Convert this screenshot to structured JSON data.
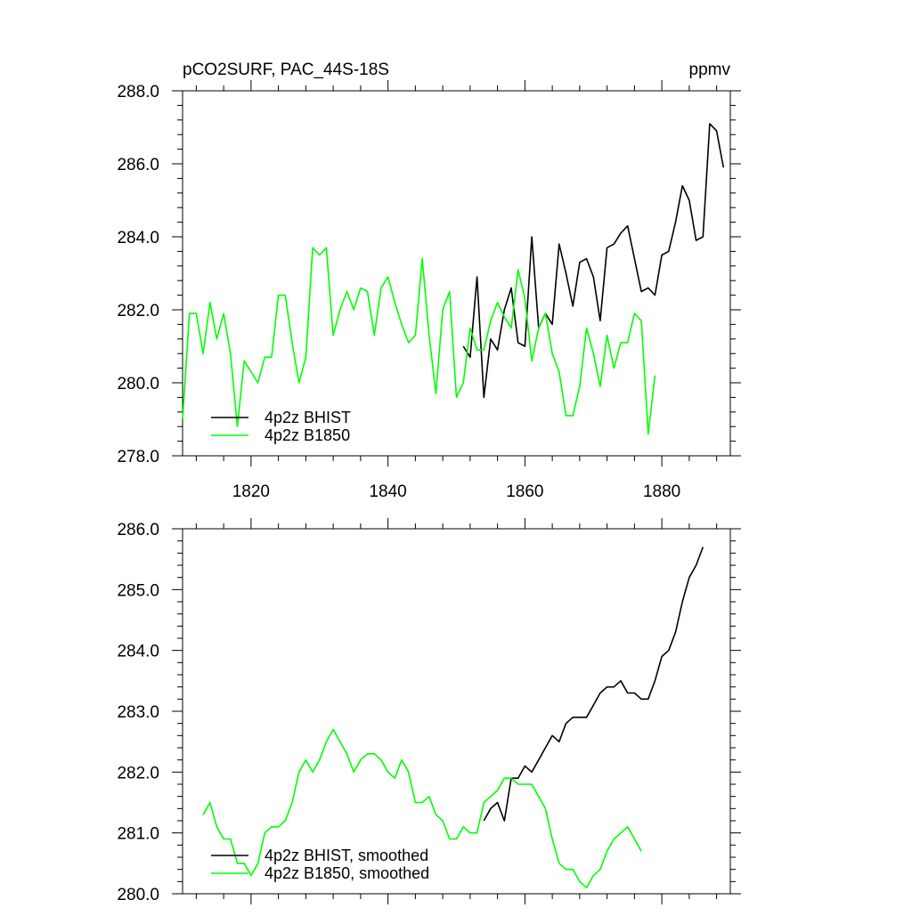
{
  "chart_data": [
    {
      "type": "line",
      "title": "pCO2SURF, PAC_44S-18S",
      "units": "ppmv",
      "xlim": [
        1810,
        1890
      ],
      "ylim": [
        278,
        288
      ],
      "x_ticks": [
        1820,
        1840,
        1860,
        1880
      ],
      "x_tick_labels": [
        "1820",
        "1840",
        "1860",
        "1880"
      ],
      "y_ticks": [
        278,
        280,
        282,
        284,
        286,
        288
      ],
      "y_tick_labels": [
        "278.0",
        "280.0",
        "282.0",
        "284.0",
        "286.0",
        "288.0"
      ],
      "legend_position": "bottom-left",
      "series": [
        {
          "name": "4p2z BHIST",
          "color": "#000000",
          "x": [
            1851,
            1852,
            1853,
            1854,
            1855,
            1856,
            1857,
            1858,
            1859,
            1860,
            1861,
            1862,
            1863,
            1864,
            1865,
            1866,
            1867,
            1868,
            1869,
            1870,
            1871,
            1872,
            1873,
            1874,
            1875,
            1876,
            1877,
            1878,
            1879,
            1880,
            1881,
            1882,
            1883,
            1884,
            1885,
            1886,
            1887,
            1888,
            1889
          ],
          "y": [
            281.0,
            280.7,
            282.9,
            279.6,
            281.2,
            280.9,
            282.0,
            282.6,
            281.1,
            281.0,
            284.0,
            281.5,
            281.9,
            281.6,
            283.8,
            283.0,
            282.1,
            283.3,
            283.4,
            282.9,
            281.7,
            283.7,
            283.8,
            284.1,
            284.3,
            283.4,
            282.5,
            282.6,
            282.4,
            283.5,
            283.6,
            284.4,
            285.4,
            285.0,
            283.9,
            284.0,
            287.1,
            286.9,
            285.9
          ]
        },
        {
          "name": "4p2z B1850",
          "color": "#00ff00",
          "x": [
            1810,
            1811,
            1812,
            1813,
            1814,
            1815,
            1816,
            1817,
            1818,
            1819,
            1820,
            1821,
            1822,
            1823,
            1824,
            1825,
            1826,
            1827,
            1828,
            1829,
            1830,
            1831,
            1832,
            1833,
            1834,
            1835,
            1836,
            1837,
            1838,
            1839,
            1840,
            1841,
            1842,
            1843,
            1844,
            1845,
            1846,
            1847,
            1848,
            1849,
            1850,
            1851,
            1852,
            1853,
            1854,
            1855,
            1856,
            1857,
            1858,
            1859,
            1860,
            1861,
            1862,
            1863,
            1864,
            1865,
            1866,
            1867,
            1868,
            1869,
            1870,
            1871,
            1872,
            1873,
            1874,
            1875,
            1876,
            1877,
            1878,
            1879
          ],
          "y": [
            279.0,
            281.9,
            281.9,
            280.8,
            282.2,
            281.2,
            281.9,
            280.8,
            278.8,
            280.6,
            280.3,
            280.0,
            280.7,
            280.7,
            282.4,
            282.4,
            281.1,
            280.0,
            280.7,
            283.7,
            283.5,
            283.7,
            281.3,
            282.0,
            282.5,
            282.0,
            282.6,
            282.5,
            281.3,
            282.6,
            282.9,
            282.2,
            281.6,
            281.1,
            281.3,
            283.4,
            281.3,
            279.7,
            282.0,
            282.5,
            279.6,
            280.0,
            281.5,
            280.9,
            280.9,
            281.7,
            282.2,
            281.8,
            281.5,
            283.1,
            282.3,
            280.6,
            281.5,
            281.9,
            280.8,
            280.3,
            279.1,
            279.1,
            279.9,
            281.5,
            280.8,
            279.9,
            281.3,
            280.4,
            281.1,
            281.1,
            281.9,
            281.7,
            278.6,
            280.2
          ]
        }
      ]
    },
    {
      "type": "line",
      "xlim": [
        1810,
        1890
      ],
      "ylim": [
        280,
        286
      ],
      "x_ticks": [
        1820,
        1840,
        1860,
        1880
      ],
      "y_ticks": [
        280,
        281,
        282,
        283,
        284,
        285,
        286
      ],
      "y_tick_labels": [
        "280.0",
        "281.0",
        "282.0",
        "283.0",
        "284.0",
        "285.0",
        "286.0"
      ],
      "legend_position": "bottom-left",
      "series": [
        {
          "name": "4p2z BHIST, smoothed",
          "color": "#000000",
          "x": [
            1854,
            1855,
            1856,
            1857,
            1858,
            1859,
            1860,
            1861,
            1862,
            1863,
            1864,
            1865,
            1866,
            1867,
            1868,
            1869,
            1870,
            1871,
            1872,
            1873,
            1874,
            1875,
            1876,
            1877,
            1878,
            1879,
            1880,
            1881,
            1882,
            1883,
            1884,
            1885,
            1886
          ],
          "y": [
            281.2,
            281.4,
            281.5,
            281.2,
            281.9,
            281.9,
            282.1,
            282.0,
            282.2,
            282.4,
            282.6,
            282.5,
            282.8,
            282.9,
            282.9,
            282.9,
            283.1,
            283.3,
            283.4,
            283.4,
            283.5,
            283.3,
            283.3,
            283.2,
            283.2,
            283.5,
            283.9,
            284.0,
            284.3,
            284.8,
            285.2,
            285.4,
            285.7
          ]
        },
        {
          "name": "4p2z B1850, smoothed",
          "color": "#00ff00",
          "x": [
            1813,
            1814,
            1815,
            1816,
            1817,
            1818,
            1819,
            1820,
            1821,
            1822,
            1823,
            1824,
            1825,
            1826,
            1827,
            1828,
            1829,
            1830,
            1831,
            1832,
            1833,
            1834,
            1835,
            1836,
            1837,
            1838,
            1839,
            1840,
            1841,
            1842,
            1843,
            1844,
            1845,
            1846,
            1847,
            1848,
            1849,
            1850,
            1851,
            1852,
            1853,
            1854,
            1855,
            1856,
            1857,
            1858,
            1859,
            1860,
            1861,
            1862,
            1863,
            1864,
            1865,
            1866,
            1867,
            1868,
            1869,
            1870,
            1871,
            1872,
            1873,
            1874,
            1875,
            1876,
            1877
          ],
          "y": [
            281.3,
            281.5,
            281.1,
            280.9,
            280.9,
            280.5,
            280.5,
            280.3,
            280.5,
            281.0,
            281.1,
            281.1,
            281.2,
            281.5,
            282.0,
            282.2,
            282.0,
            282.2,
            282.5,
            282.7,
            282.5,
            282.3,
            282.0,
            282.2,
            282.3,
            282.3,
            282.2,
            282.0,
            281.9,
            282.2,
            282.0,
            281.5,
            281.5,
            281.6,
            281.3,
            281.2,
            280.9,
            280.9,
            281.1,
            281.0,
            281.0,
            281.5,
            281.6,
            281.7,
            281.9,
            281.9,
            281.8,
            281.8,
            281.8,
            281.6,
            281.4,
            280.9,
            280.5,
            280.4,
            280.4,
            280.2,
            280.1,
            280.3,
            280.4,
            280.7,
            280.9,
            281.0,
            281.1,
            280.9,
            280.7
          ]
        }
      ]
    }
  ]
}
